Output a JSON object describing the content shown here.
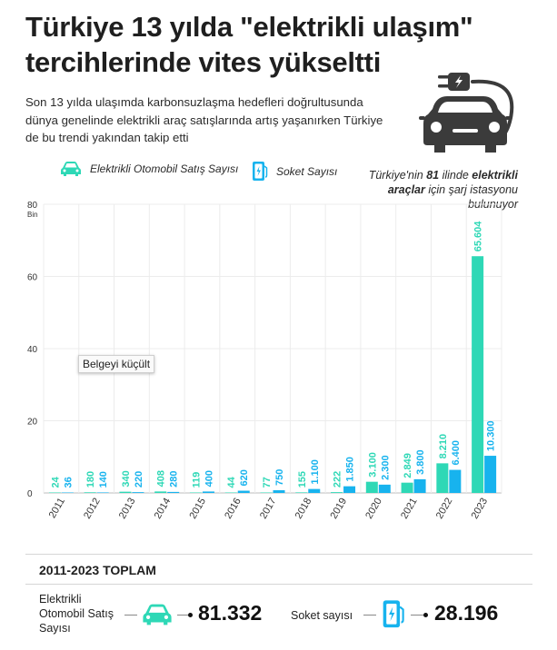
{
  "header": {
    "title": "Türkiye 13 yılda \"elektrikli ulaşım\" tercihlerinde vites yükseltti",
    "subtitle": "Son 13 yılda ulaşımda karbonsuzlaşma hedefleri doğrultusunda dünya genelinde elektrikli araç satışlarında artış yaşanırken Türkiye de bu trendi yakından takip etti"
  },
  "legend": {
    "cars": "Elektrikli Otomobil Satış Sayısı",
    "sockets": "Soket Sayısı"
  },
  "note": {
    "prefix": "Türkiye'nin ",
    "number": "81",
    "middle": " ilinde ",
    "bold": "elektrikli araçlar",
    "suffix": " için şarj istasyonu bulunuyor"
  },
  "tooltip": "Belgeyi küçült",
  "colors": {
    "cars": "#2ed8b6",
    "sockets": "#17b3ee",
    "dark": "#3b3b3b"
  },
  "chart_data": {
    "type": "bar",
    "yunit": "Bin",
    "ylim": [
      0,
      80
    ],
    "yticks": [
      0,
      20,
      40,
      60,
      80
    ],
    "categories": [
      "2011",
      "2012",
      "2013",
      "2014",
      "2015",
      "2016",
      "2017",
      "2018",
      "2019",
      "2020",
      "2021",
      "2022",
      "2023"
    ],
    "series": [
      {
        "name": "Elektrikli Otomobil Satış Sayısı",
        "values": [
          0.024,
          0.18,
          0.34,
          0.408,
          0.119,
          0.044,
          0.077,
          0.155,
          0.222,
          3.1,
          2.849,
          8.21,
          65.604
        ],
        "labels": [
          "24",
          "180",
          "340",
          "408",
          "119",
          "44",
          "77",
          "155",
          "222",
          "3.100",
          "2.849",
          "8.210",
          "65.604"
        ]
      },
      {
        "name": "Soket Sayısı",
        "values": [
          0.036,
          0.14,
          0.22,
          0.28,
          0.4,
          0.62,
          0.75,
          1.1,
          1.85,
          2.3,
          3.8,
          6.4,
          10.3
        ],
        "labels": [
          "36",
          "140",
          "220",
          "280",
          "400",
          "620",
          "750",
          "1.100",
          "1.850",
          "2.300",
          "3.800",
          "6.400",
          "10.300"
        ]
      }
    ]
  },
  "totals": {
    "heading": "2011-2023 TOPLAM",
    "cars_label": "Elektrikli Otomobil Satış Sayısı",
    "cars_value": "81.332",
    "sockets_label": "Soket sayısı",
    "sockets_value": "28.196"
  }
}
